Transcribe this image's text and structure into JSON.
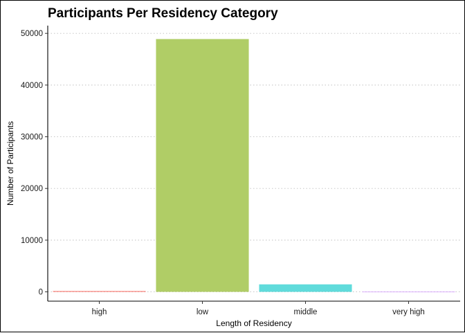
{
  "chart_data": {
    "type": "bar",
    "title": "Participants Per Residency Category",
    "xlabel": "Length of Residency",
    "ylabel": "Number of Participants",
    "categories": [
      "high",
      "low",
      "middle",
      "very high"
    ],
    "values": [
      150,
      48900,
      1450,
      10
    ],
    "colors": [
      "#f8766d",
      "#b0cd66",
      "#60dbdb",
      "#c77cff"
    ],
    "ylim": [
      -1800,
      51500
    ],
    "yticks": [
      0,
      10000,
      20000,
      30000,
      40000,
      50000
    ],
    "ytick_labels": [
      "0",
      "10000",
      "20000",
      "30000",
      "40000",
      "50000"
    ],
    "grid": "horizontal-dotted",
    "legend": "none"
  }
}
